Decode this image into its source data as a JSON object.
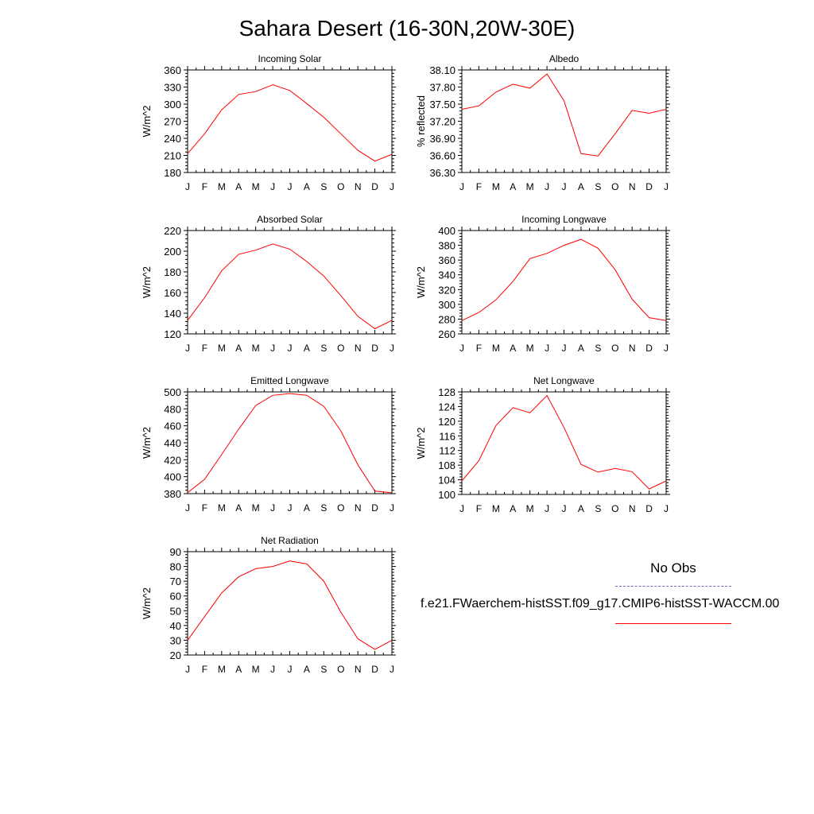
{
  "title": "Sahara Desert (16-30N,20W-30E)",
  "legend": {
    "obs_label": "No Obs",
    "obs_color": "#6a6ae0",
    "model_label": "f.e21.FWaerchem-histSST.f09_g17.CMIP6-histSST-WACCM.00",
    "model_color": "#ff0000"
  },
  "chart_data": [
    {
      "type": "line",
      "title": "Incoming Solar",
      "ylabel": "W/m^2",
      "categories": [
        "J",
        "F",
        "M",
        "A",
        "M",
        "J",
        "J",
        "A",
        "S",
        "O",
        "N",
        "D",
        "J"
      ],
      "ylim": [
        180,
        360
      ],
      "yticks": [
        "180",
        "210",
        "240",
        "270",
        "300",
        "330",
        "360"
      ],
      "grid": false,
      "series": [
        {
          "values": [
            213,
            248,
            290,
            317,
            322,
            334,
            324,
            301,
            277,
            248,
            219,
            200,
            212
          ]
        }
      ]
    },
    {
      "type": "line",
      "title": "Albedo",
      "ylabel": "% reflected",
      "categories": [
        "J",
        "F",
        "M",
        "A",
        "M",
        "J",
        "J",
        "A",
        "S",
        "O",
        "N",
        "D",
        "J"
      ],
      "ylim": [
        36.3,
        38.1
      ],
      "yticks": [
        "36.30",
        "36.60",
        "36.90",
        "37.20",
        "37.50",
        "37.80",
        "38.10"
      ],
      "grid": false,
      "series": [
        {
          "values": [
            37.41,
            37.47,
            37.71,
            37.85,
            37.78,
            38.03,
            37.56,
            36.63,
            36.59,
            36.98,
            37.39,
            37.34,
            37.41
          ]
        }
      ]
    },
    {
      "type": "line",
      "title": "Absorbed Solar",
      "ylabel": "W/m^2",
      "categories": [
        "J",
        "F",
        "M",
        "A",
        "M",
        "J",
        "J",
        "A",
        "S",
        "O",
        "N",
        "D",
        "J"
      ],
      "ylim": [
        120,
        220
      ],
      "yticks": [
        "120",
        "140",
        "160",
        "180",
        "200",
        "220"
      ],
      "grid": false,
      "series": [
        {
          "values": [
            133,
            155,
            181,
            197,
            201,
            207,
            202,
            190,
            176,
            157,
            137,
            125,
            133
          ]
        }
      ]
    },
    {
      "type": "line",
      "title": "Incoming Longwave",
      "ylabel": "W/m^2",
      "categories": [
        "J",
        "F",
        "M",
        "A",
        "M",
        "J",
        "J",
        "A",
        "S",
        "O",
        "N",
        "D",
        "J"
      ],
      "ylim": [
        260,
        400
      ],
      "yticks": [
        "260",
        "280",
        "300",
        "320",
        "340",
        "360",
        "380",
        "400"
      ],
      "grid": false,
      "series": [
        {
          "values": [
            278,
            289,
            306,
            331,
            362,
            369,
            380,
            388,
            376,
            347,
            307,
            282,
            278
          ]
        }
      ]
    },
    {
      "type": "line",
      "title": "Emitted Longwave",
      "ylabel": "W/m^2",
      "categories": [
        "J",
        "F",
        "M",
        "A",
        "M",
        "J",
        "J",
        "A",
        "S",
        "O",
        "N",
        "D",
        "J"
      ],
      "ylim": [
        380,
        500
      ],
      "yticks": [
        "380",
        "400",
        "420",
        "440",
        "460",
        "480",
        "500"
      ],
      "grid": false,
      "series": [
        {
          "values": [
            381,
            397,
            426,
            456,
            484,
            496,
            498,
            496,
            483,
            454,
            414,
            383,
            381
          ]
        }
      ]
    },
    {
      "type": "line",
      "title": "Net Longwave",
      "ylabel": "W/m^2",
      "categories": [
        "J",
        "F",
        "M",
        "A",
        "M",
        "J",
        "J",
        "A",
        "S",
        "O",
        "N",
        "D",
        "J"
      ],
      "ylim": [
        100,
        128
      ],
      "yticks": [
        "100",
        "104",
        "108",
        "112",
        "116",
        "120",
        "124",
        "128"
      ],
      "grid": false,
      "series": [
        {
          "values": [
            103.7,
            109.2,
            118.8,
            123.7,
            122.3,
            127.0,
            118.3,
            108.2,
            106.1,
            107.1,
            106.2,
            101.5,
            103.7
          ]
        }
      ]
    },
    {
      "type": "line",
      "title": "Net Radiation",
      "ylabel": "W/m^2",
      "categories": [
        "J",
        "F",
        "M",
        "A",
        "M",
        "J",
        "J",
        "A",
        "S",
        "O",
        "N",
        "D",
        "J"
      ],
      "ylim": [
        20,
        90
      ],
      "yticks": [
        "20",
        "30",
        "40",
        "50",
        "60",
        "70",
        "80",
        "90"
      ],
      "grid": false,
      "series": [
        {
          "values": [
            30,
            46,
            62,
            73,
            78.5,
            80,
            83.7,
            81.7,
            70,
            49,
            31,
            23.8,
            30
          ]
        }
      ]
    }
  ]
}
